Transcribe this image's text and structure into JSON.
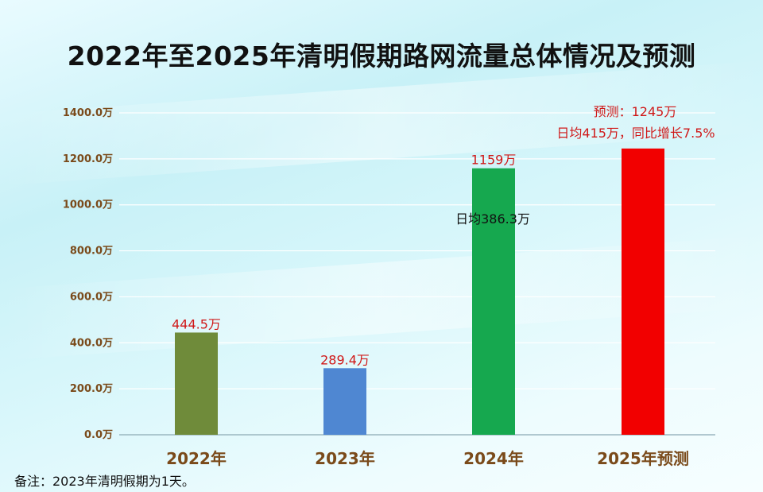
{
  "title": "2022年至2025年清明假期路网流量总体情况及预测",
  "footnote": "备注：2023年清明假期为1天。",
  "chart_data": {
    "type": "bar",
    "categories": [
      "2022年",
      "2023年",
      "2024年",
      "2025年预测"
    ],
    "values": [
      444.5,
      289.4,
      1159,
      1245
    ],
    "data_labels": [
      "444.5万",
      "289.4万",
      "1159万",
      "预测：1245万"
    ],
    "bar_colors": [
      "#6f8b3a",
      "#4f87d2",
      "#16a84f",
      "#f20000"
    ],
    "ylim": [
      0,
      1400
    ],
    "yticks": [
      0,
      200,
      400,
      600,
      800,
      1000,
      1200,
      1400
    ],
    "ytick_labels": [
      "0.0万",
      "200.0万",
      "400.0万",
      "600.0万",
      "800.0万",
      "1000.0万",
      "1200.0万",
      "1400.0万"
    ],
    "annotations": {
      "2024_daily": "日均386.3万",
      "2025_daily": "日均415万，同比增长7.5%"
    },
    "grid": true,
    "legend": "none"
  }
}
